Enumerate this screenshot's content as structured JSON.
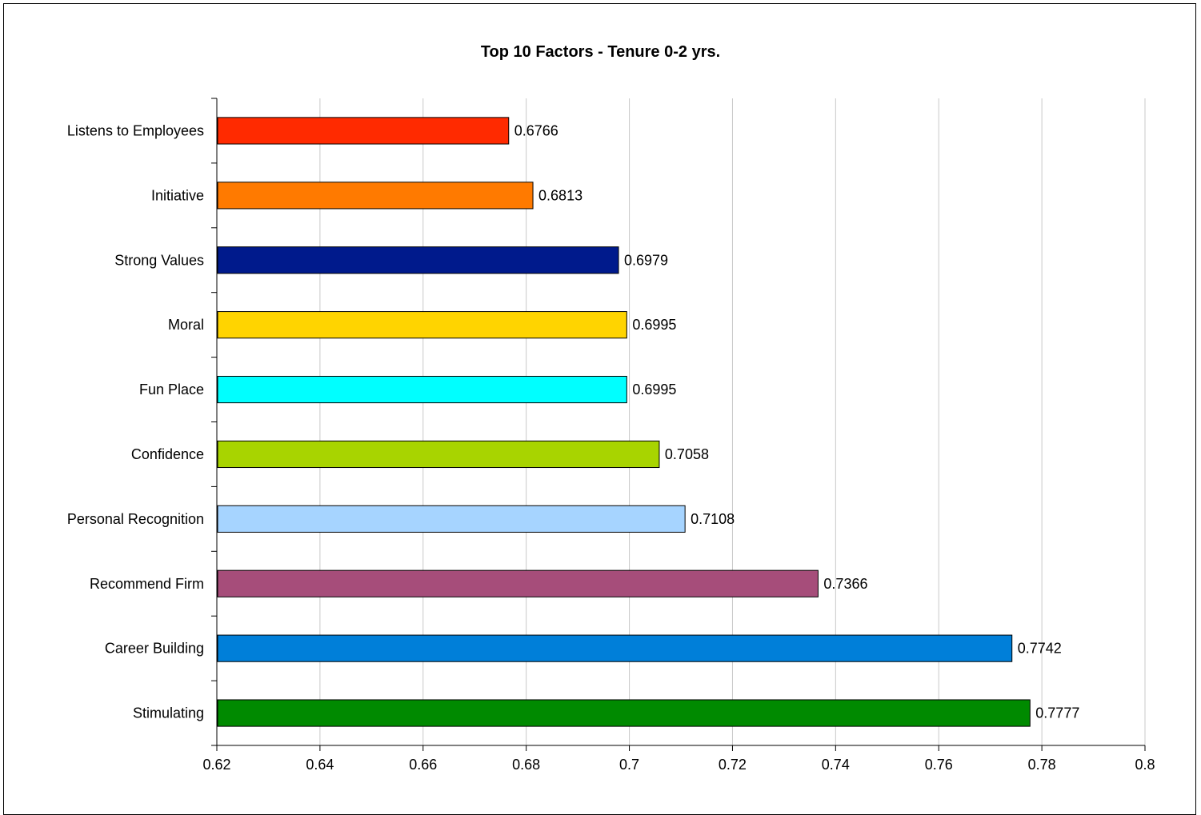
{
  "chart_data": {
    "type": "bar",
    "orientation": "horizontal",
    "title": "Top 10 Factors - Tenure 0-2 yrs.",
    "xlabel": "",
    "ylabel": "",
    "xlim": [
      0.62,
      0.8
    ],
    "x_ticks": [
      "0.62",
      "0.64",
      "0.66",
      "0.68",
      "0.7",
      "0.72",
      "0.74",
      "0.76",
      "0.78",
      "0.8"
    ],
    "x_tick_values": [
      0.62,
      0.64,
      0.66,
      0.68,
      0.7,
      0.72,
      0.74,
      0.76,
      0.78,
      0.8
    ],
    "grid": "vertical",
    "legend": "none",
    "categories": [
      "Listens to Employees",
      "Initiative",
      "Strong Values",
      "Moral",
      "Fun Place",
      "Confidence",
      "Personal Recognition",
      "Recommend Firm",
      "Career Building",
      "Stimulating"
    ],
    "values": [
      0.6766,
      0.6813,
      0.6979,
      0.6995,
      0.6995,
      0.7058,
      0.7108,
      0.7366,
      0.7742,
      0.7777
    ],
    "value_labels": [
      "0.6766",
      "0.6813",
      "0.6979",
      "0.6995",
      "0.6995",
      "0.7058",
      "0.7108",
      "0.7366",
      "0.7742",
      "0.7777"
    ],
    "colors": [
      "#ff2a00",
      "#ff7a00",
      "#001a8c",
      "#ffd400",
      "#00ffff",
      "#a8d400",
      "#a6d4ff",
      "#a64d7a",
      "#007fd9",
      "#008a00"
    ]
  }
}
